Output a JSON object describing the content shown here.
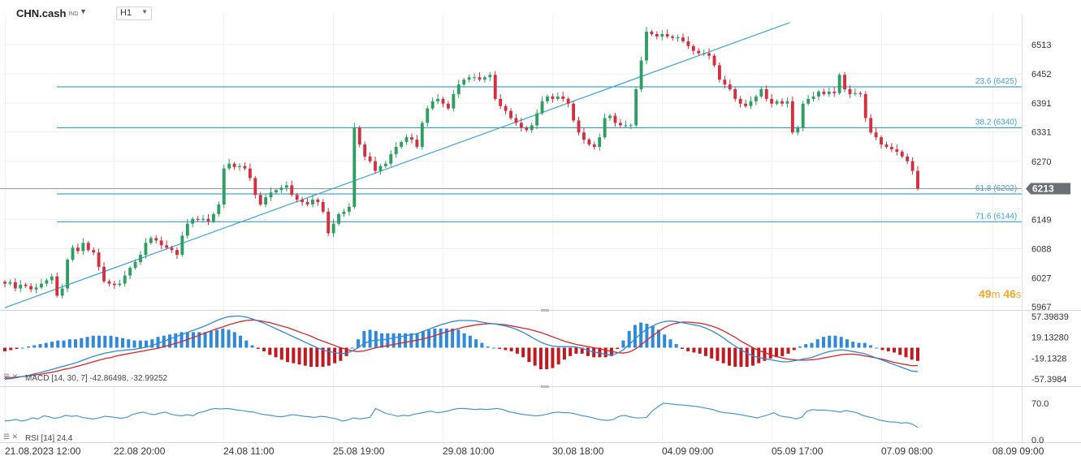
{
  "toolbar": {
    "symbol": "CHN.cash",
    "symbol_suffix": "IND",
    "timeframe": "H1"
  },
  "countdown": {
    "minutes": "49",
    "seconds": "46",
    "minutes_unit": "m",
    "seconds_unit": "s"
  },
  "colors": {
    "up": "#2e9e63",
    "down": "#d32f3f",
    "fib_line": "#1f8fb5",
    "trend_line": "#3fa0e0",
    "macd_line": "#2f88d8",
    "signal_line": "#d8262a",
    "hist_pos": "#2f88d8",
    "hist_neg": "#c1191f",
    "rsi_line": "#3a90d6",
    "price_tag_bg": "#6b7078"
  },
  "chart_data": [
    {
      "type": "candlestick",
      "symbol": "CHN.cash",
      "timeframe": "H1",
      "y_axis_ticks": [
        "6513",
        "6452",
        "6391",
        "6331",
        "6270",
        "6149",
        "6088",
        "6027",
        "5967"
      ],
      "x_axis_ticks": [
        "21.08.2023  12:00",
        "22.08  20:00",
        "24.08  11:00",
        "25.08  19:00",
        "29.08  10:00",
        "30.08  18:00",
        "04.09  09:00",
        "05.09  17:00",
        "07.09  08:00",
        "08.09  09:00"
      ],
      "ylim": [
        5962,
        6545
      ],
      "last_price": "6213",
      "fibonacci_levels": [
        {
          "label": "23.6 (6425)",
          "value": 6425
        },
        {
          "label": "38.2 (6340)",
          "value": 6340
        },
        {
          "label": "61.8 (6202)",
          "value": 6202
        },
        {
          "label": "71.6 (6144)",
          "value": 6144
        }
      ],
      "trend_line": {
        "from": [
          0,
          5965
        ],
        "to": [
          150,
          6559
        ]
      },
      "closes": [
        6015,
        6018,
        6005,
        6013,
        6010,
        6003,
        6007,
        6015,
        6022,
        6030,
        5990,
        6005,
        6065,
        6090,
        6083,
        6100,
        6085,
        6080,
        6050,
        6020,
        6015,
        6012,
        6015,
        6032,
        6048,
        6060,
        6075,
        6100,
        6110,
        6105,
        6095,
        6090,
        6085,
        6075,
        6115,
        6140,
        6150,
        6148,
        6150,
        6145,
        6160,
        6180,
        6255,
        6265,
        6258,
        6260,
        6255,
        6235,
        6200,
        6180,
        6195,
        6205,
        6210,
        6215,
        6220,
        6200,
        6190,
        6185,
        6180,
        6190,
        6185,
        6165,
        6120,
        6140,
        6160,
        6165,
        6175,
        6340,
        6305,
        6280,
        6270,
        6250,
        6260,
        6265,
        6285,
        6300,
        6310,
        6320,
        6315,
        6300,
        6350,
        6380,
        6395,
        6400,
        6390,
        6380,
        6410,
        6430,
        6440,
        6445,
        6445,
        6440,
        6445,
        6450,
        6400,
        6385,
        6375,
        6360,
        6350,
        6340,
        6335,
        6345,
        6370,
        6395,
        6405,
        6400,
        6405,
        6400,
        6390,
        6355,
        6330,
        6315,
        6305,
        6300,
        6320,
        6360,
        6365,
        6350,
        6345,
        6345,
        6345,
        6420,
        6480,
        6540,
        6535,
        6530,
        6535,
        6530,
        6527,
        6528,
        6520,
        6510,
        6500,
        6495,
        6495,
        6490,
        6470,
        6440,
        6430,
        6420,
        6400,
        6390,
        6385,
        6395,
        6405,
        6420,
        6400,
        6390,
        6395,
        6390,
        6395,
        6330,
        6340,
        6390,
        6400,
        6405,
        6415,
        6410,
        6415,
        6412,
        6450,
        6420,
        6410,
        6412,
        6410,
        6360,
        6330,
        6320,
        6305,
        6300,
        6295,
        6290,
        6280,
        6270,
        6250,
        6213
      ]
    },
    {
      "type": "line",
      "indicator": "MACD",
      "legend": "MACD  [14, 30, 7]  -42.86498,  -32.99252",
      "y_axis_ticks": [
        "57.39839",
        "19.13280",
        "-19.1328",
        "-57.3984"
      ],
      "ylim": [
        -65,
        65
      ],
      "series": [
        {
          "values": [
            -58,
            -57,
            -55,
            -53,
            -51,
            -48,
            -46,
            -43,
            -40,
            -37,
            -34,
            -31,
            -28,
            -24,
            -20,
            -16,
            -13,
            -10,
            -8,
            -6,
            -5,
            -4,
            -3,
            -1,
            1,
            4,
            8,
            12,
            16,
            20,
            24,
            28,
            32,
            36,
            40,
            45,
            50,
            54,
            57,
            58,
            58,
            56,
            53,
            49,
            45,
            40,
            35,
            30,
            25,
            20,
            15,
            10,
            5,
            0,
            -4,
            -7,
            -9,
            -11,
            -10,
            -6,
            0,
            8,
            12,
            14,
            14,
            16,
            18,
            20,
            22,
            24,
            26,
            30,
            34,
            38,
            42,
            45,
            48,
            50,
            50,
            50,
            49,
            47,
            45,
            44,
            42,
            40,
            37,
            33,
            28,
            22,
            16,
            10,
            6,
            3,
            2,
            2,
            2,
            1,
            -1,
            -5,
            -8,
            -10,
            -12,
            -14,
            -10,
            -4,
            6,
            16,
            26,
            34,
            40,
            45,
            48,
            49,
            48,
            46,
            44,
            42,
            40,
            36,
            31,
            25,
            18,
            10,
            3,
            -4,
            -10,
            -15,
            -18,
            -20,
            -22,
            -24,
            -26,
            -26,
            -24,
            -22,
            -20,
            -18,
            -14,
            -10,
            -7,
            -5,
            -4,
            -5,
            -7,
            -9,
            -11,
            -15,
            -19,
            -23,
            -27,
            -31,
            -35,
            -39,
            -43,
            -44
          ]
        },
        {
          "values": [
            -55,
            -55,
            -54,
            -53,
            -52,
            -50,
            -49,
            -47,
            -45,
            -43,
            -40,
            -38,
            -35,
            -32,
            -29,
            -26,
            -23,
            -20,
            -18,
            -15,
            -13,
            -11,
            -9,
            -7,
            -5,
            -3,
            -1,
            2,
            5,
            8,
            11,
            15,
            19,
            23,
            27,
            31,
            35,
            38,
            42,
            45,
            48,
            50,
            51,
            50,
            48,
            46,
            43,
            40,
            37,
            33,
            29,
            25,
            21,
            16,
            12,
            8,
            4,
            0,
            -3,
            -6,
            -7,
            -6,
            -3,
            0,
            2,
            4,
            6,
            8,
            10,
            12,
            14,
            16,
            19,
            22,
            26,
            29,
            32,
            35,
            38,
            40,
            42,
            43,
            44,
            44,
            43,
            42,
            40,
            38,
            36,
            34,
            31,
            28,
            24,
            20,
            16,
            12,
            9,
            6,
            4,
            2,
            0,
            -2,
            -4,
            -7,
            -9,
            -10,
            -8,
            -3,
            5,
            14,
            22,
            30,
            37,
            42,
            45,
            47,
            47,
            46,
            45,
            43,
            40,
            36,
            31,
            25,
            19,
            12,
            6,
            0,
            -5,
            -9,
            -13,
            -16,
            -19,
            -21,
            -22,
            -23,
            -23,
            -22,
            -21,
            -19,
            -17,
            -15,
            -13,
            -12,
            -12,
            -13,
            -15,
            -17,
            -19,
            -21,
            -24,
            -27,
            -29,
            -31,
            -33,
            -33
          ]
        }
      ]
    },
    {
      "type": "line",
      "indicator": "RSI",
      "legend": "RSI  [14]  24.4",
      "y_axis_ticks": [
        "70.0",
        "0.0"
      ],
      "ylim": [
        0,
        100
      ],
      "series": [
        {
          "values": [
            36,
            37,
            39,
            36,
            38,
            42,
            40,
            46,
            44,
            41,
            43,
            47,
            45,
            46,
            43,
            41,
            40,
            42,
            45,
            44,
            43,
            41,
            43,
            48,
            51,
            53,
            50,
            48,
            51,
            53,
            49,
            47,
            46,
            48,
            46,
            52,
            54,
            58,
            60,
            59,
            60,
            59,
            57,
            56,
            54,
            53,
            50,
            48,
            47,
            45,
            44,
            46,
            48,
            47,
            45,
            44,
            43,
            45,
            44,
            42,
            40,
            36,
            38,
            42,
            40,
            41,
            43,
            60,
            55,
            50,
            48,
            45,
            47,
            46,
            49,
            51,
            53,
            55,
            52,
            53,
            55,
            58,
            60,
            60,
            59,
            58,
            59,
            58,
            59,
            60,
            58,
            54,
            52,
            50,
            48,
            47,
            46,
            47,
            49,
            52,
            53,
            52,
            52,
            50,
            47,
            45,
            43,
            40,
            38,
            37,
            39,
            45,
            47,
            44,
            42,
            42,
            43,
            55,
            63,
            70,
            69,
            68,
            67,
            66,
            65,
            64,
            62,
            60,
            58,
            54,
            52,
            51,
            50,
            48,
            46,
            44,
            42,
            45,
            48,
            52,
            46,
            44,
            43,
            40,
            43,
            55,
            58,
            57,
            57,
            56,
            55,
            53,
            56,
            54,
            52,
            47,
            44,
            42,
            38,
            36,
            34,
            34,
            32,
            33,
            30,
            24
          ]
        }
      ]
    }
  ]
}
